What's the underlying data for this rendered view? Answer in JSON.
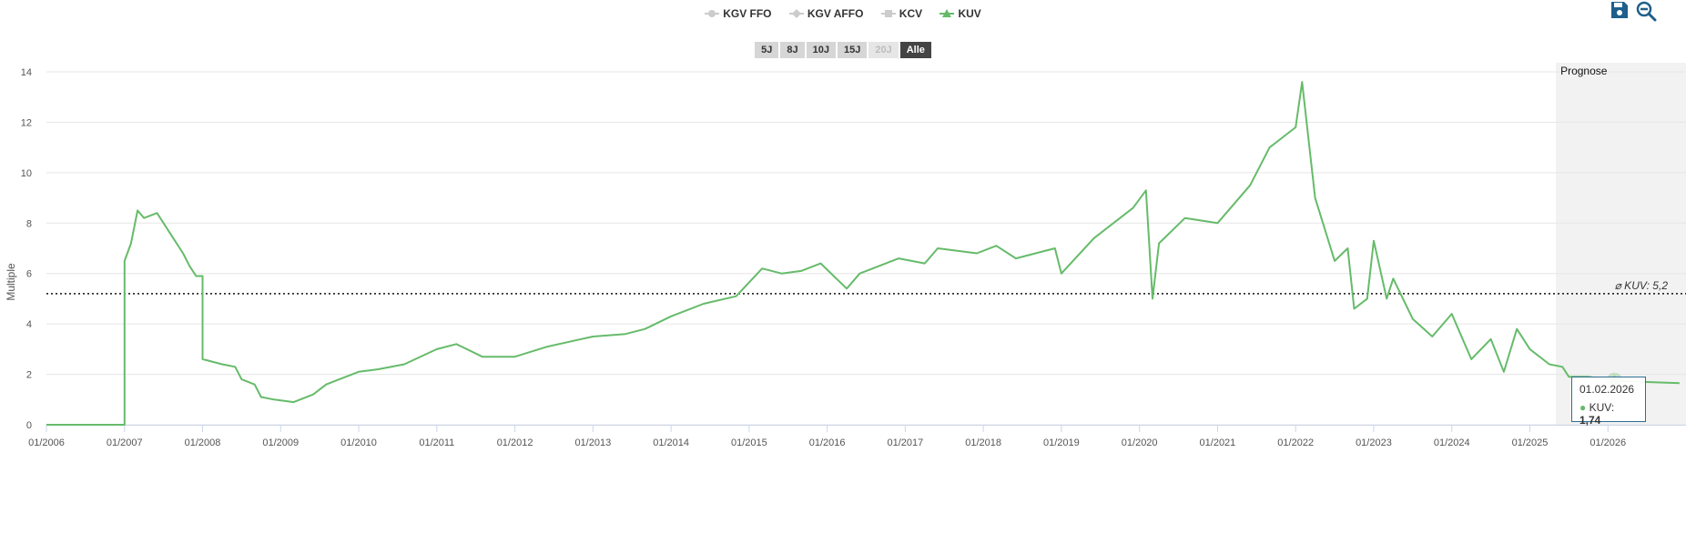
{
  "legend": [
    {
      "label": "KGV FFO",
      "marker": "circle",
      "state": "hidden",
      "color": "#cccccc"
    },
    {
      "label": "KGV AFFO",
      "marker": "diamond",
      "state": "hidden",
      "color": "#cccccc"
    },
    {
      "label": "KCV",
      "marker": "square",
      "state": "hidden",
      "color": "#cccccc"
    },
    {
      "label": "KUV",
      "marker": "triangle",
      "state": "active",
      "color": "#66bb6a"
    }
  ],
  "ranges": [
    {
      "label": "5J",
      "state": "normal"
    },
    {
      "label": "8J",
      "state": "normal"
    },
    {
      "label": "10J",
      "state": "normal"
    },
    {
      "label": "15J",
      "state": "normal"
    },
    {
      "label": "20J",
      "state": "disabled"
    },
    {
      "label": "Alle",
      "state": "selected"
    }
  ],
  "tools": {
    "save_icon": "save-icon",
    "zoom_out_icon": "zoom-out-icon",
    "color": "#1e5f8c"
  },
  "tooltip": {
    "date": "01.02.2026",
    "series": "KUV",
    "value": "1,74"
  },
  "chart_data": {
    "type": "line",
    "ylabel": "Multiple",
    "ylim": [
      0,
      14
    ],
    "yticks": [
      0,
      2,
      4,
      6,
      8,
      10,
      12,
      14
    ],
    "xlim": [
      "2006-01",
      "2026-12"
    ],
    "xticks": [
      "01/2006",
      "01/2007",
      "01/2008",
      "01/2009",
      "01/2010",
      "01/2011",
      "01/2012",
      "01/2013",
      "01/2014",
      "01/2015",
      "01/2016",
      "01/2017",
      "01/2018",
      "01/2019",
      "01/2020",
      "01/2021",
      "01/2022",
      "01/2023",
      "01/2024",
      "01/2025",
      "01/2026"
    ],
    "grid": true,
    "line_color": "#66bb6a",
    "average": {
      "label": "⌀ KUV: 5,2",
      "value": 5.2
    },
    "forecast": {
      "label": "Prognose",
      "start": "2025-05",
      "end": "2026-12"
    },
    "series": [
      {
        "name": "KUV",
        "points": [
          [
            "2006-01",
            0.0
          ],
          [
            "2007-01",
            0.0
          ],
          [
            "2007-01",
            6.5
          ],
          [
            "2007-02",
            7.2
          ],
          [
            "2007-03",
            8.5
          ],
          [
            "2007-04",
            8.2
          ],
          [
            "2007-06",
            8.4
          ],
          [
            "2007-08",
            7.6
          ],
          [
            "2007-10",
            6.8
          ],
          [
            "2007-11",
            6.3
          ],
          [
            "2007-12",
            5.9
          ],
          [
            "2008-01",
            5.9
          ],
          [
            "2008-01",
            2.6
          ],
          [
            "2008-04",
            2.4
          ],
          [
            "2008-06",
            2.3
          ],
          [
            "2008-07",
            1.8
          ],
          [
            "2008-09",
            1.6
          ],
          [
            "2008-10",
            1.1
          ],
          [
            "2008-12",
            1.0
          ],
          [
            "2009-03",
            0.9
          ],
          [
            "2009-06",
            1.2
          ],
          [
            "2009-08",
            1.6
          ],
          [
            "2009-10",
            1.8
          ],
          [
            "2010-01",
            2.1
          ],
          [
            "2010-04",
            2.2
          ],
          [
            "2010-08",
            2.4
          ],
          [
            "2011-01",
            3.0
          ],
          [
            "2011-04",
            3.2
          ],
          [
            "2011-08",
            2.7
          ],
          [
            "2012-01",
            2.7
          ],
          [
            "2012-06",
            3.1
          ],
          [
            "2013-01",
            3.5
          ],
          [
            "2013-06",
            3.6
          ],
          [
            "2013-09",
            3.8
          ],
          [
            "2014-01",
            4.3
          ],
          [
            "2014-06",
            4.8
          ],
          [
            "2014-11",
            5.1
          ],
          [
            "2015-03",
            6.2
          ],
          [
            "2015-06",
            6.0
          ],
          [
            "2015-09",
            6.1
          ],
          [
            "2015-12",
            6.4
          ],
          [
            "2016-04",
            5.4
          ],
          [
            "2016-06",
            6.0
          ],
          [
            "2016-12",
            6.6
          ],
          [
            "2017-04",
            6.4
          ],
          [
            "2017-06",
            7.0
          ],
          [
            "2017-12",
            6.8
          ],
          [
            "2018-03",
            7.1
          ],
          [
            "2018-06",
            6.6
          ],
          [
            "2018-12",
            7.0
          ],
          [
            "2019-01",
            6.0
          ],
          [
            "2019-06",
            7.4
          ],
          [
            "2019-12",
            8.6
          ],
          [
            "2020-02",
            9.3
          ],
          [
            "2020-03",
            5.0
          ],
          [
            "2020-04",
            7.2
          ],
          [
            "2020-08",
            8.2
          ],
          [
            "2021-01",
            8.0
          ],
          [
            "2021-06",
            9.5
          ],
          [
            "2021-09",
            11.0
          ],
          [
            "2022-01",
            11.8
          ],
          [
            "2022-02",
            13.6
          ],
          [
            "2022-04",
            9.0
          ],
          [
            "2022-07",
            6.5
          ],
          [
            "2022-09",
            7.0
          ],
          [
            "2022-10",
            4.6
          ],
          [
            "2022-12",
            5.0
          ],
          [
            "2023-01",
            7.3
          ],
          [
            "2023-03",
            5.0
          ],
          [
            "2023-04",
            5.8
          ],
          [
            "2023-07",
            4.2
          ],
          [
            "2023-10",
            3.5
          ],
          [
            "2024-01",
            4.4
          ],
          [
            "2024-04",
            2.6
          ],
          [
            "2024-07",
            3.4
          ],
          [
            "2024-09",
            2.1
          ],
          [
            "2024-11",
            3.8
          ],
          [
            "2025-01",
            3.0
          ],
          [
            "2025-04",
            2.4
          ],
          [
            "2025-06",
            2.3
          ],
          [
            "2025-07",
            1.9
          ],
          [
            "2025-09",
            1.9
          ],
          [
            "2025-10",
            1.9
          ],
          [
            "2026-01",
            1.8
          ],
          [
            "2026-04",
            1.72
          ],
          [
            "2026-12",
            1.65
          ]
        ]
      }
    ],
    "highlight": {
      "x": "2026-02",
      "y": 1.74
    }
  }
}
